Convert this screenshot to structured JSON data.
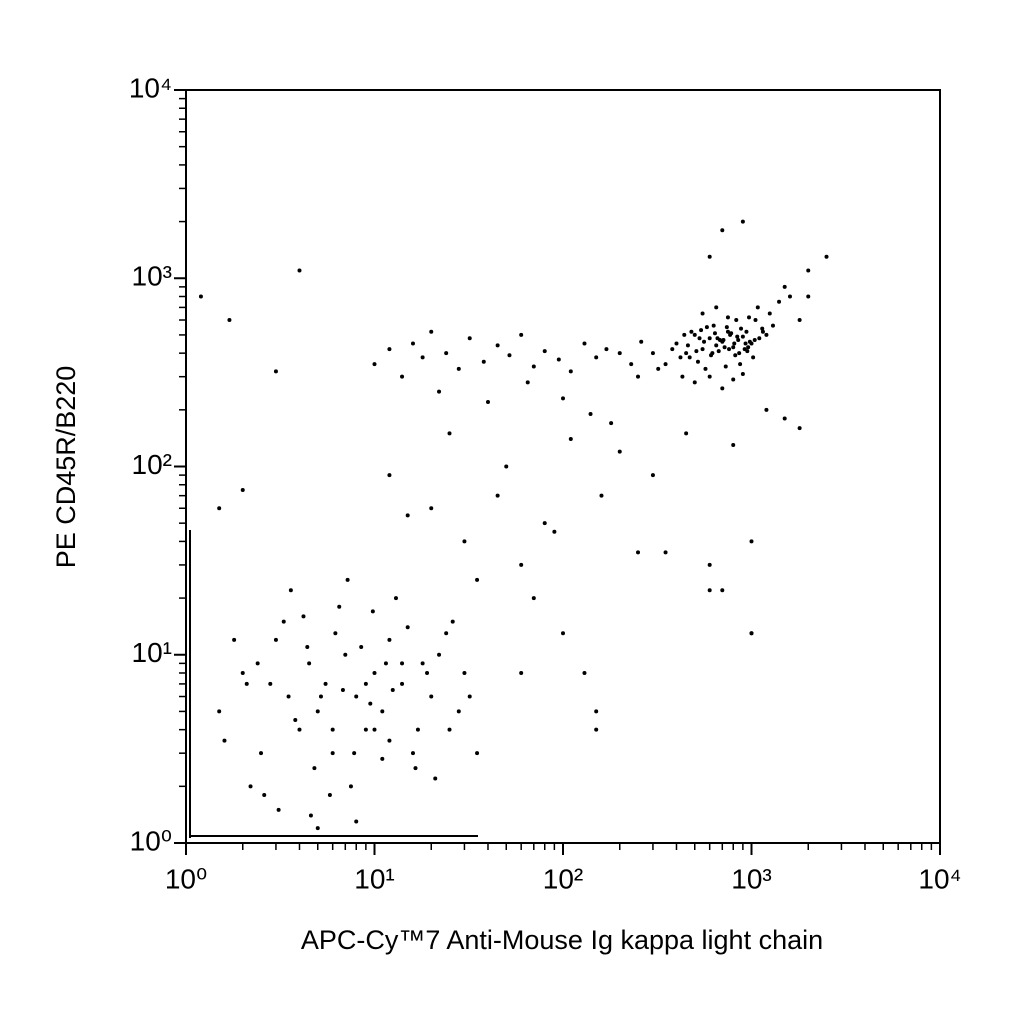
{
  "chart_data": {
    "type": "scatter",
    "xlabel": "APC-Cy™7 Anti-Mouse Ig kappa light chain",
    "ylabel": "PE CD45R/B220",
    "xscale": "log",
    "yscale": "log",
    "color": "#000000",
    "xlim": [
      1,
      10000
    ],
    "ylim": [
      1,
      10000
    ],
    "xticks": [
      {
        "value": 1,
        "label": "10⁰"
      },
      {
        "value": 10,
        "label": "10¹"
      },
      {
        "value": 100,
        "label": "10²"
      },
      {
        "value": 1000,
        "label": "10³"
      },
      {
        "value": 10000,
        "label": "10⁴"
      }
    ],
    "yticks": [
      {
        "value": 1,
        "label": "10⁰"
      },
      {
        "value": 10,
        "label": "10¹"
      },
      {
        "value": 100,
        "label": "10²"
      },
      {
        "value": 1000,
        "label": "10³"
      },
      {
        "value": 10000,
        "label": "10⁴"
      }
    ],
    "minor_ticks": true,
    "x": [
      1.5,
      2,
      2.5,
      3,
      3.5,
      4,
      4.5,
      5,
      5.5,
      6,
      7,
      8,
      9,
      10,
      11,
      12,
      14,
      16,
      18,
      20,
      25,
      30,
      2.2,
      3.3,
      4.8,
      6.5,
      8.5,
      12,
      15,
      22,
      1.8,
      2.8,
      3.8,
      5.2,
      7.5,
      9.5,
      13,
      17,
      24,
      35,
      2.4,
      4.2,
      6.2,
      9,
      11,
      19,
      28,
      3.1,
      5.8,
      7.2,
      1.6,
      2.6,
      4.4,
      6.8,
      10,
      14,
      21,
      32,
      8,
      5,
      3.6,
      7.8,
      12.5,
      4.6,
      9.8,
      2.1,
      6,
      11.5,
      16.5,
      26,
      10,
      12,
      14,
      16,
      18,
      20,
      24,
      28,
      32,
      38,
      45,
      52,
      60,
      70,
      80,
      95,
      110,
      130,
      150,
      170,
      200,
      230,
      260,
      22,
      40,
      65,
      100,
      140,
      180,
      250,
      12,
      20,
      30,
      45,
      60,
      80,
      25,
      35,
      50,
      70,
      90,
      15,
      110,
      130,
      160,
      200,
      300,
      450,
      600,
      800,
      1000,
      1200,
      150,
      350,
      700,
      400,
      450,
      500,
      550,
      600,
      650,
      700,
      750,
      800,
      850,
      900,
      950,
      1000,
      1100,
      1200,
      420,
      480,
      520,
      580,
      620,
      680,
      720,
      780,
      820,
      880,
      920,
      980,
      1050,
      1150,
      1300,
      350,
      380,
      430,
      470,
      530,
      570,
      630,
      670,
      730,
      770,
      830,
      870,
      930,
      970,
      1020,
      1080,
      1250,
      1400,
      1600,
      1800,
      300,
      320,
      500,
      600,
      700,
      800,
      900,
      550,
      650,
      750,
      460,
      560,
      660,
      760,
      860,
      960,
      510,
      610,
      710,
      810,
      440,
      540,
      640,
      740,
      840,
      940,
      1040,
      1140,
      1500,
      2000,
      1.2,
      1.7,
      4,
      700,
      900,
      600,
      2500,
      2000,
      1500,
      1800,
      600,
      1000,
      1000,
      100,
      150,
      2,
      1.5,
      250,
      3,
      60
    ],
    "values": [
      5,
      8,
      3,
      12,
      6,
      4,
      9,
      5,
      7,
      3,
      10,
      6,
      4,
      8,
      5,
      12,
      7,
      3,
      9,
      6,
      4,
      8,
      2,
      15,
      2.5,
      18,
      11,
      3.5,
      14,
      10,
      12,
      7,
      4.5,
      6,
      2,
      5.5,
      20,
      4,
      13,
      3,
      9,
      16,
      13,
      7,
      2.8,
      8,
      5,
      1.5,
      1.8,
      25,
      3.5,
      1.8,
      11,
      6.5,
      4,
      9,
      2.2,
      6,
      1.3,
      1.2,
      22,
      3,
      6.5,
      1.4,
      17,
      7,
      4,
      9,
      2.5,
      15,
      350,
      420,
      300,
      450,
      380,
      520,
      400,
      330,
      480,
      360,
      440,
      390,
      500,
      340,
      410,
      370,
      320,
      450,
      380,
      420,
      400,
      350,
      460,
      250,
      220,
      280,
      230,
      190,
      170,
      300,
      90,
      60,
      40,
      70,
      30,
      50,
      150,
      25,
      100,
      20,
      45,
      55,
      140,
      8,
      70,
      120,
      90,
      150,
      30,
      130,
      13,
      200,
      4,
      35,
      22,
      450,
      400,
      500,
      420,
      480,
      440,
      460,
      520,
      430,
      470,
      490,
      410,
      450,
      480,
      500,
      380,
      520,
      360,
      550,
      400,
      470,
      430,
      510,
      390,
      540,
      420,
      460,
      600,
      520,
      560,
      350,
      420,
      300,
      380,
      480,
      330,
      560,
      410,
      340,
      500,
      600,
      350,
      450,
      620,
      380,
      700,
      650,
      750,
      800,
      600,
      400,
      330,
      280,
      300,
      260,
      290,
      310,
      650,
      700,
      620,
      440,
      460,
      480,
      420,
      400,
      430,
      410,
      390,
      470,
      450,
      500,
      530,
      510,
      550,
      490,
      520,
      470,
      540,
      900,
      1100,
      800,
      600,
      1100,
      1800,
      2000,
      1300,
      1300,
      800,
      180,
      160,
      22,
      13,
      40,
      13,
      5,
      75,
      60,
      35,
      320,
      8
    ]
  }
}
